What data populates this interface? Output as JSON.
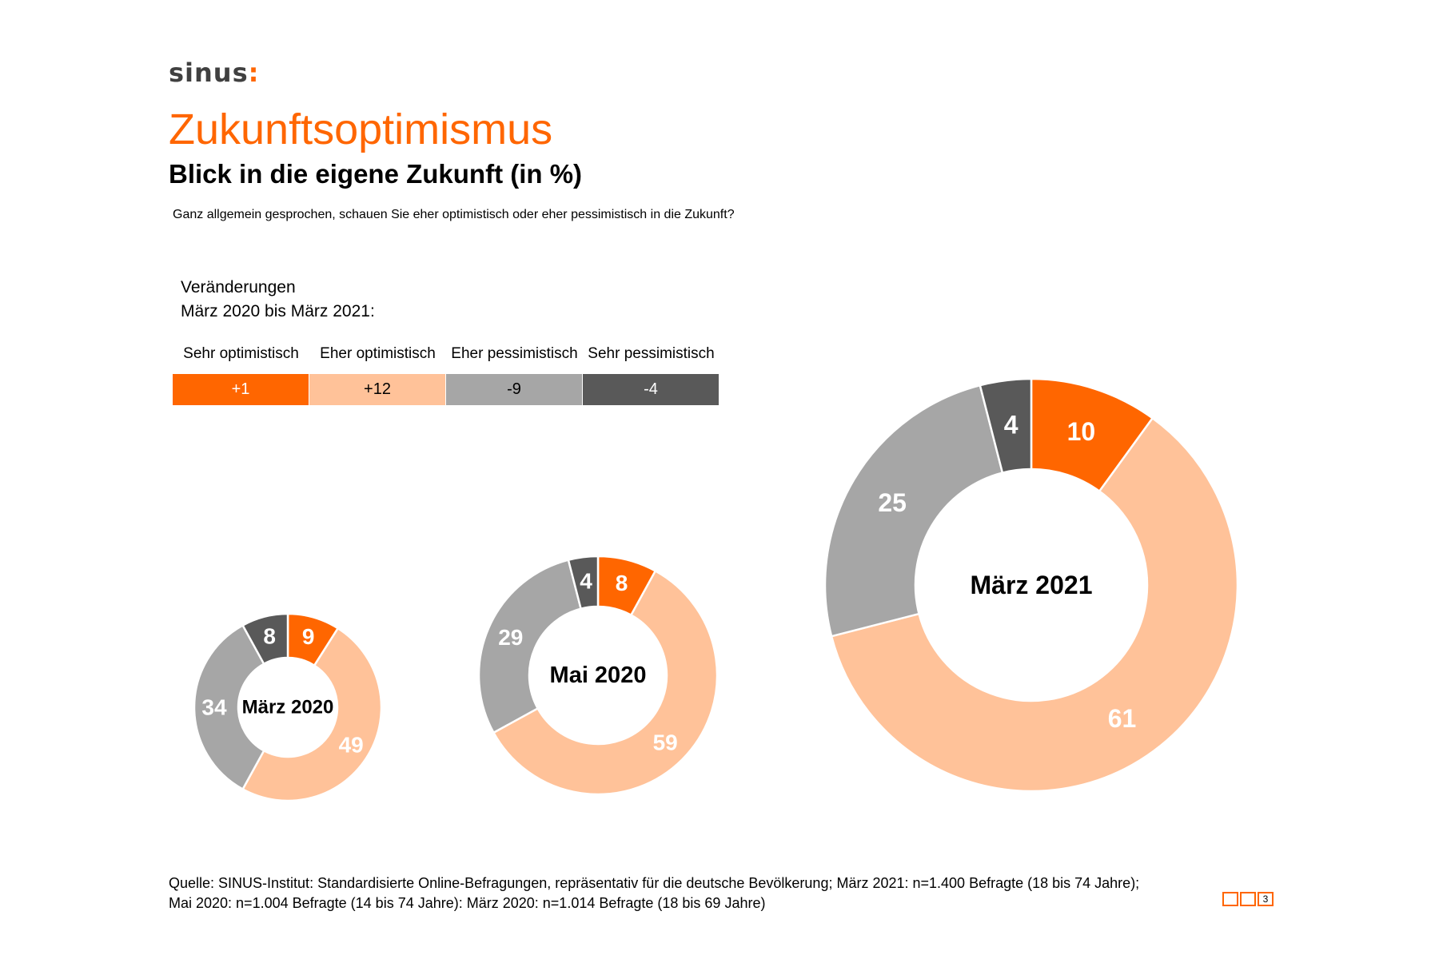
{
  "logo": {
    "text": "sinus",
    "dots": ":"
  },
  "title": "Zukunftsoptimismus",
  "subtitle": "Blick in die eigene Zukunft (in %)",
  "question": "Ganz allgemein gesprochen, schauen Sie eher optimistisch oder eher pessimistisch in die Zukunft?",
  "changes": {
    "heading_line1": "Veränderungen",
    "heading_line2": "März 2020 bis März 2021:",
    "labels": [
      "Sehr optimistisch",
      "Eher optimistisch",
      "Eher pessimistisch",
      "Sehr pessimistisch"
    ],
    "values": [
      "+1",
      "+12",
      "-9",
      "-4"
    ]
  },
  "colors": {
    "sehr_optimistisch": "#ff6600",
    "eher_optimistisch": "#ffc299",
    "eher_pessimistisch": "#a6a6a6",
    "sehr_pessimistisch": "#595959"
  },
  "chart_data": [
    {
      "type": "pie",
      "center_label": "März 2020",
      "categories": [
        "Sehr optimistisch",
        "Eher optimistisch",
        "Eher pessimistisch",
        "Sehr pessimistisch"
      ],
      "values": [
        9,
        49,
        34,
        8
      ]
    },
    {
      "type": "pie",
      "center_label": "Mai 2020",
      "categories": [
        "Sehr optimistisch",
        "Eher optimistisch",
        "Eher pessimistisch",
        "Sehr pessimistisch"
      ],
      "values": [
        8,
        59,
        29,
        4
      ]
    },
    {
      "type": "pie",
      "center_label": "März 2021",
      "categories": [
        "Sehr optimistisch",
        "Eher optimistisch",
        "Eher pessimistisch",
        "Sehr pessimistisch"
      ],
      "values": [
        10,
        61,
        25,
        4
      ]
    }
  ],
  "source": {
    "line1": "Quelle: SINUS-Institut: Standardisierte Online-Befragungen, repräsentativ für die deutsche Bevölkerung; März 2021: n=1.400 Befragte (18 bis 74 Jahre);",
    "line2": "Mai 2020: n=1.004 Befragte (14 bis 74 Jahre): März 2020: n=1.014 Befragte (18 bis 69 Jahre)"
  },
  "page_number": "3"
}
